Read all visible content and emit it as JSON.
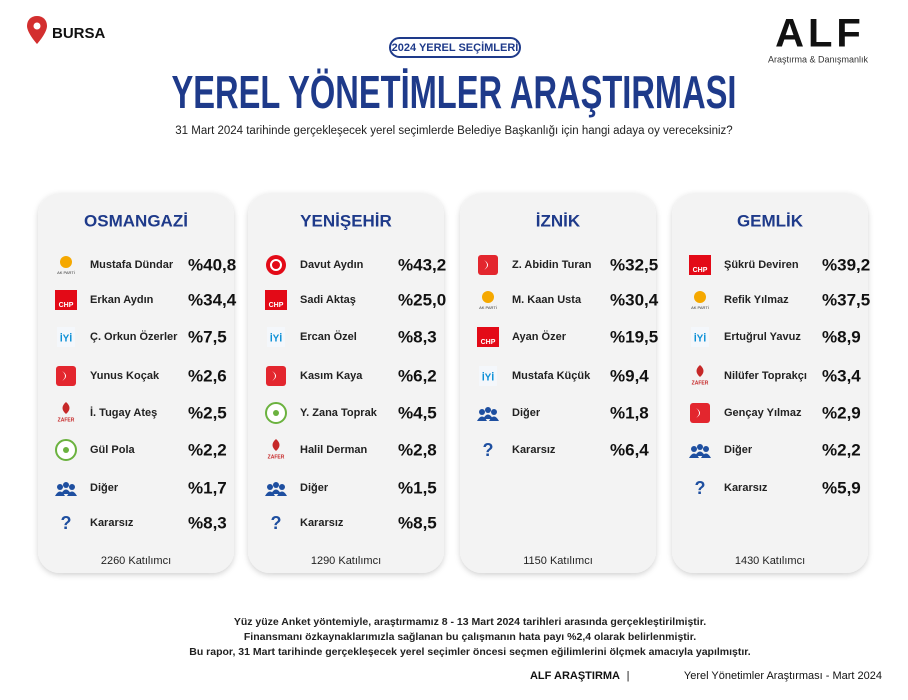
{
  "header": {
    "city": "BURSA",
    "badge": "2024 YEREL SEÇİMLERİ",
    "title": "YEREL YÖNETİMLER ARAŞTIRMASI",
    "question": "31 Mart 2024 tarihinde gerçekleşecek yerel seçimlerde Belediye Başkanlığı için hangi adaya oy vereceksiniz?",
    "brand": "ALF",
    "brand_sub": "Araştırma & Danışmanlık"
  },
  "logo_texts": [
    "CHP",
    "AK PARTİ",
    "İYİ",
    "ZAFER",
    "?"
  ],
  "districts": [
    {
      "name": "OSMANGAZİ",
      "rows": [
        [
          "Mustafa Dündar",
          "%40,8"
        ],
        [
          "Erkan Aydın",
          "%34,4"
        ],
        [
          "Ç. Orkun Özerler",
          "%7,5"
        ],
        [
          "Yunus Koçak",
          "%2,6"
        ],
        [
          "İ. Tugay Ateş",
          "%2,5"
        ],
        [
          "Gül Pola",
          "%2,2"
        ],
        [
          "Diğer",
          "%1,7"
        ],
        [
          "Kararsız",
          "%8,3"
        ]
      ],
      "participants": "2260 Katılımcı"
    },
    {
      "name": "YENİŞEHİR",
      "rows": [
        [
          "Davut Aydın",
          "%43,2"
        ],
        [
          "Sadi Aktaş",
          "%25,0"
        ],
        [
          "Ercan Özel",
          "%8,3"
        ],
        [
          "Kasım Kaya",
          "%6,2"
        ],
        [
          "Y. Zana Toprak",
          "%4,5"
        ],
        [
          "Halil Derman",
          "%2,8"
        ],
        [
          "Diğer",
          "%1,5"
        ],
        [
          "Kararsız",
          "%8,5"
        ]
      ],
      "participants": "1290 Katılımcı"
    },
    {
      "name": "İZNİK",
      "rows": [
        [
          "Z. Abidin Turan",
          "%32,5"
        ],
        [
          "M. Kaan Usta",
          "%30,4"
        ],
        [
          "Ayan Özer",
          "%19,5"
        ],
        [
          "Mustafa Küçük",
          "%9,4"
        ],
        [
          "Diğer",
          "%1,8"
        ],
        [
          "Kararsız",
          "%6,4"
        ]
      ],
      "participants": "1150 Katılımcı"
    },
    {
      "name": "GEMLİK",
      "rows": [
        [
          "Şükrü Deviren",
          "%39,2"
        ],
        [
          "Refik Yılmaz",
          "%37,5"
        ],
        [
          "Ertuğrul Yavuz",
          "%8,9"
        ],
        [
          "Nilüfer Toprakçı",
          "%3,4"
        ],
        [
          "Gençay Yılmaz",
          "%2,9"
        ],
        [
          "Diğer",
          "%2,2"
        ],
        [
          "Kararsız",
          "%5,9"
        ]
      ],
      "participants": "1430 Katılımcı"
    }
  ],
  "footer": {
    "notes": [
      "Yüz yüze Anket yöntemiyle, araştırmamız 8 - 13 Mart 2024 tarihleri arasında gerçekleştirilmiştir.",
      "Finansmanı özkaynaklarımızla sağlanan bu çalışmanın hata payı %2,4 olarak belirlenmiştir.",
      "Bu rapor, 31 Mart tarihinde gerçekleşecek yerel seçimler öncesi seçmen eğilimlerini ölçmek amacıyla yapılmıştır."
    ],
    "brand": "ALF ARAŞTIRMA",
    "separator": "|",
    "tagline": "Yerel Yönetimler Araştırması - Mart 2024"
  }
}
